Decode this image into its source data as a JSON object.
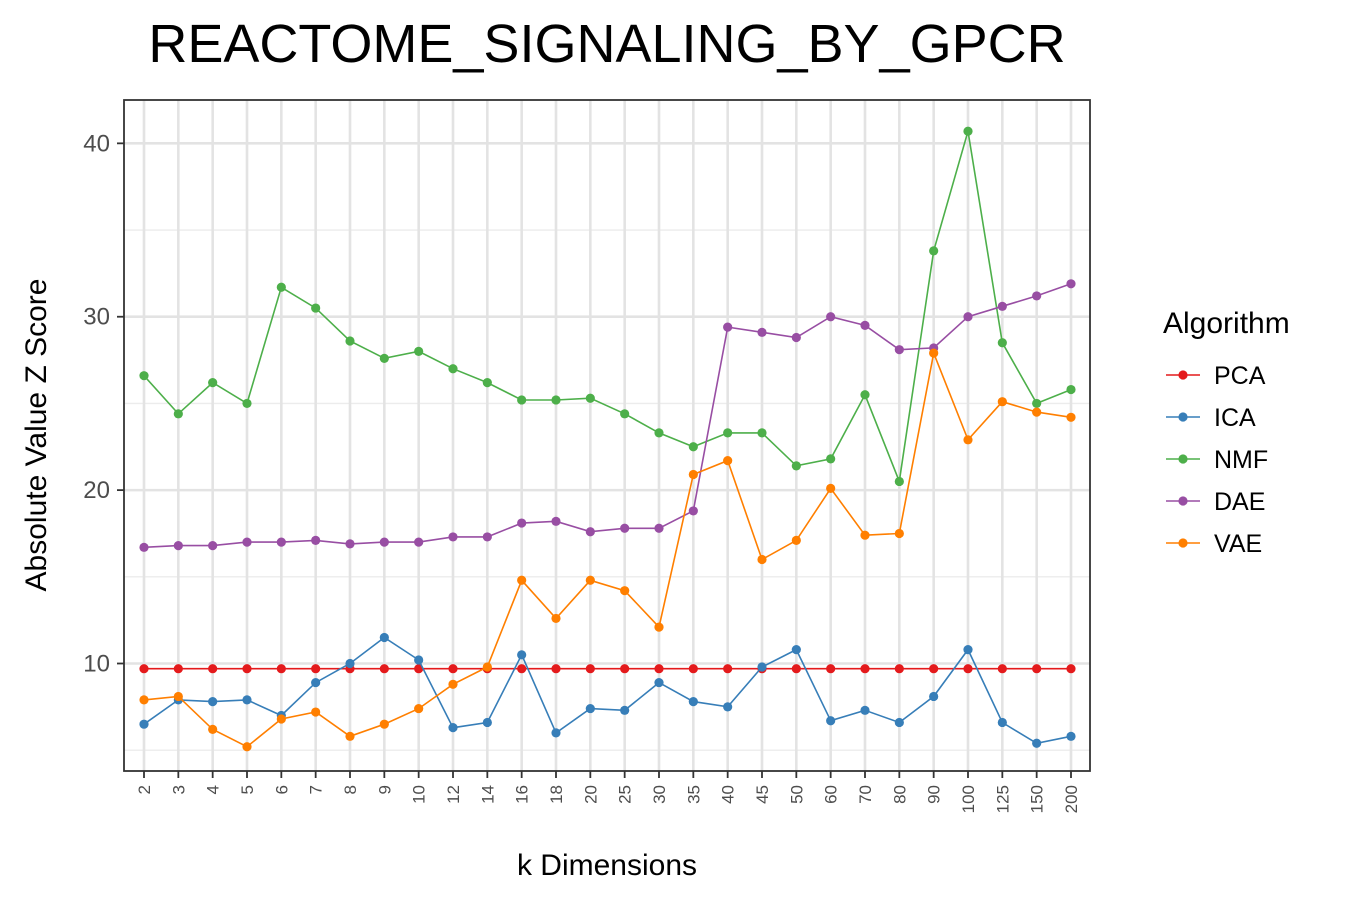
{
  "chart_data": {
    "type": "line",
    "title": "REACTOME_SIGNALING_BY_GPCR",
    "xlabel": "k Dimensions",
    "ylabel": "Absolute Value Z Score",
    "categories": [
      "2",
      "3",
      "4",
      "5",
      "6",
      "7",
      "8",
      "9",
      "10",
      "12",
      "14",
      "16",
      "18",
      "20",
      "25",
      "30",
      "35",
      "40",
      "45",
      "50",
      "60",
      "70",
      "80",
      "90",
      "100",
      "125",
      "150",
      "200"
    ],
    "yticks": [
      10,
      20,
      30,
      40
    ],
    "ylim": [
      3.8,
      42.5
    ],
    "grid": true,
    "legend": {
      "title": "Algorithm",
      "position": "right"
    },
    "series": [
      {
        "name": "PCA",
        "color": "#e41a1c",
        "values": [
          9.7,
          9.7,
          9.7,
          9.7,
          9.7,
          9.7,
          9.7,
          9.7,
          9.7,
          9.7,
          9.7,
          9.7,
          9.7,
          9.7,
          9.7,
          9.7,
          9.7,
          9.7,
          9.7,
          9.7,
          9.7,
          9.7,
          9.7,
          9.7,
          9.7,
          9.7,
          9.7,
          9.7
        ]
      },
      {
        "name": "ICA",
        "color": "#377eb8",
        "values": [
          6.5,
          7.9,
          7.8,
          7.9,
          7.0,
          8.9,
          10.0,
          11.5,
          10.2,
          6.3,
          6.6,
          10.5,
          6.0,
          7.4,
          7.3,
          8.9,
          7.8,
          7.5,
          9.8,
          10.8,
          6.7,
          7.3,
          6.6,
          8.1,
          10.8,
          6.6,
          5.4,
          5.8
        ]
      },
      {
        "name": "NMF",
        "color": "#4daf4a",
        "values": [
          26.6,
          24.4,
          26.2,
          25.0,
          31.7,
          30.5,
          28.6,
          27.6,
          28.0,
          27.0,
          26.2,
          25.2,
          25.2,
          25.3,
          24.4,
          23.3,
          22.5,
          23.3,
          23.3,
          21.4,
          21.8,
          25.5,
          20.5,
          33.8,
          40.7,
          28.5,
          25.0,
          25.8
        ]
      },
      {
        "name": "DAE",
        "color": "#984ea3",
        "values": [
          16.7,
          16.8,
          16.8,
          17.0,
          17.0,
          17.1,
          16.9,
          17.0,
          17.0,
          17.3,
          17.3,
          18.1,
          18.2,
          17.6,
          17.8,
          17.8,
          18.8,
          29.4,
          29.1,
          28.8,
          30.0,
          29.5,
          28.1,
          28.2,
          30.0,
          30.6,
          31.2,
          31.9
        ]
      },
      {
        "name": "VAE",
        "color": "#ff7f00",
        "values": [
          7.9,
          8.1,
          6.2,
          5.2,
          6.8,
          7.2,
          5.8,
          6.5,
          7.4,
          8.8,
          9.8,
          14.8,
          12.6,
          14.8,
          14.2,
          12.1,
          20.9,
          21.7,
          16.0,
          17.1,
          20.1,
          17.4,
          17.5,
          27.9,
          22.9,
          25.1,
          24.5,
          24.2
        ]
      }
    ]
  }
}
